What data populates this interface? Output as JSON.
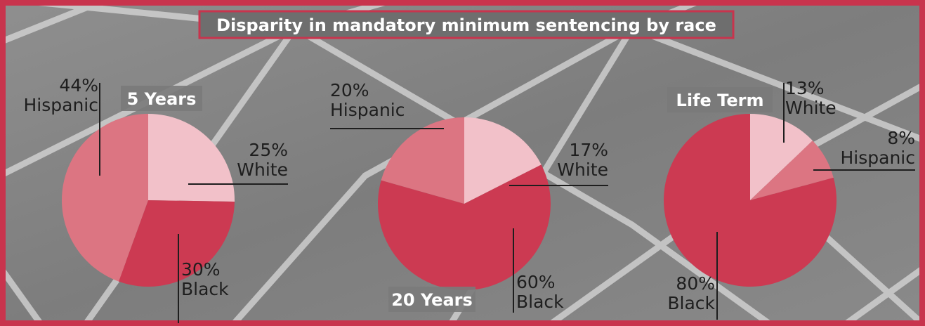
{
  "title": "Disparity in mandatory minimum sentencing by race",
  "chart_data": [
    {
      "type": "pie",
      "title": "5 Years",
      "categories": [
        "White",
        "Black",
        "Hispanic"
      ],
      "values": [
        25,
        30,
        44
      ],
      "value_labels": [
        "25%",
        "30%",
        "44%"
      ],
      "colors": [
        "#f2c1c9",
        "#cc3a52",
        "#dc7582"
      ]
    },
    {
      "type": "pie",
      "title": "20 Years",
      "categories": [
        "White",
        "Black",
        "Hispanic"
      ],
      "values": [
        17,
        60,
        20
      ],
      "value_labels": [
        "17%",
        "60%",
        "20%"
      ],
      "colors": [
        "#f2c1c9",
        "#cc3a52",
        "#dc7582"
      ]
    },
    {
      "type": "pie",
      "title": "Life Term",
      "categories": [
        "White",
        "Hispanic",
        "Black"
      ],
      "values": [
        13,
        8,
        80
      ],
      "value_labels": [
        "13%",
        "8%",
        "80%"
      ],
      "colors": [
        "#f2c1c9",
        "#dc7582",
        "#cc3a52"
      ]
    }
  ]
}
